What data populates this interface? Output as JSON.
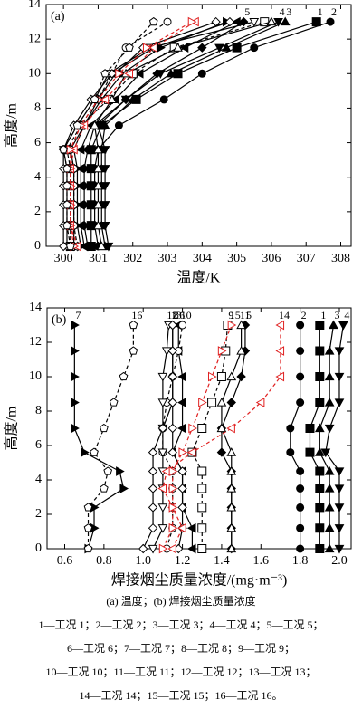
{
  "chart_data": [
    {
      "type": "line",
      "panel_label": "(a)",
      "xlabel": "温度/K",
      "ylabel": "高度/m",
      "heights": [
        0,
        1.2,
        2.4,
        3.5,
        4.5,
        5.6,
        7,
        8.5,
        10,
        11.5,
        13
      ],
      "xlim": [
        299.5,
        308.3
      ],
      "ylim": [
        0,
        14
      ],
      "xticks": [
        300,
        301,
        302,
        303,
        304,
        305,
        306,
        307,
        308
      ],
      "yticks": [
        0,
        2,
        4,
        6,
        8,
        10,
        12,
        14
      ],
      "series": [
        {
          "name": "1",
          "color": "#000000",
          "marker": "square",
          "filled": true,
          "dash": false,
          "values": [
            300.8,
            300.8,
            300.8,
            300.8,
            300.8,
            300.8,
            301.1,
            302.1,
            303.3,
            305.0,
            307.3
          ]
        },
        {
          "name": "2",
          "color": "#000000",
          "marker": "circle",
          "filled": true,
          "dash": false,
          "values": [
            301.0,
            300.9,
            300.9,
            300.9,
            300.9,
            301.0,
            301.6,
            302.9,
            304.0,
            305.5,
            307.7
          ]
        },
        {
          "name": "3",
          "color": "#000000",
          "marker": "tri-up",
          "filled": true,
          "dash": false,
          "values": [
            301.2,
            301.1,
            301.1,
            301.1,
            301.1,
            301.1,
            301.2,
            302.0,
            303.1,
            304.7,
            306.4
          ]
        },
        {
          "name": "4",
          "color": "#000000",
          "marker": "tri-down",
          "filled": true,
          "dash": false,
          "values": [
            301.3,
            301.2,
            301.2,
            301.2,
            301.2,
            301.2,
            301.0,
            301.8,
            302.8,
            304.5,
            306.2
          ]
        },
        {
          "name": "5",
          "color": "#000000",
          "marker": "diamond",
          "filled": true,
          "dash": false,
          "values": [
            300.7,
            300.6,
            300.6,
            300.6,
            300.6,
            300.7,
            300.9,
            301.8,
            302.7,
            304.0,
            305.2
          ]
        },
        {
          "color": "#000000",
          "marker": "tri-left",
          "filled": true,
          "dash": false,
          "values": [
            300.6,
            300.5,
            300.5,
            300.5,
            300.5,
            300.5,
            300.8,
            301.5,
            302.2,
            303.5,
            305.0
          ]
        },
        {
          "color": "#000000",
          "marker": "tri-right",
          "filled": true,
          "dash": false,
          "values": [
            300.5,
            300.4,
            300.4,
            300.4,
            300.4,
            300.3,
            300.6,
            301.1,
            301.7,
            302.8,
            304.7
          ]
        },
        {
          "color": "#000000",
          "marker": "diamond",
          "filled": false,
          "dash": false,
          "values": [
            300.3,
            300.3,
            300.3,
            300.3,
            300.3,
            300.2,
            300.6,
            301.0,
            301.5,
            302.3,
            304.4
          ]
        },
        {
          "color": "#000000",
          "marker": "square",
          "filled": false,
          "dash": true,
          "values": [
            300.2,
            300.2,
            300.2,
            300.2,
            300.2,
            300.1,
            300.5,
            301.3,
            302.0,
            303.2,
            305.8
          ]
        },
        {
          "color": "#000000",
          "marker": "circle",
          "filled": false,
          "dash": true,
          "values": [
            300.4,
            300.3,
            300.3,
            300.3,
            300.3,
            300.2,
            300.5,
            301.0,
            301.4,
            301.8,
            303.0
          ]
        },
        {
          "color": "#000000",
          "marker": "tri-up",
          "filled": false,
          "dash": false,
          "values": [
            301.1,
            301.0,
            301.0,
            301.0,
            301.0,
            301.0,
            300.9,
            301.4,
            301.8,
            303.3,
            306.0
          ]
        },
        {
          "color": "#000000",
          "marker": "tri-down",
          "filled": false,
          "dash": false,
          "values": [
            300.1,
            300.1,
            300.1,
            300.1,
            300.1,
            300.0,
            300.4,
            300.9,
            301.3,
            302.5,
            305.5
          ]
        },
        {
          "color": "#000000",
          "marker": "diamond",
          "filled": false,
          "dash": false,
          "values": [
            300.0,
            300.0,
            300.0,
            300.0,
            300.0,
            300.0,
            300.3,
            300.8,
            301.4,
            302.6,
            304.8
          ]
        },
        {
          "color": "#e02020",
          "marker": "tri-left",
          "filled": false,
          "dash": true,
          "values": [
            300.4,
            300.2,
            300.2,
            300.2,
            300.2,
            300.3,
            300.6,
            301.2,
            301.9,
            302.6,
            303.8
          ]
        },
        {
          "color": "#e02020",
          "marker": "tri-right",
          "filled": false,
          "dash": true,
          "values": [
            300.3,
            300.2,
            300.2,
            300.2,
            300.2,
            300.2,
            300.5,
            301.0,
            301.6,
            302.4,
            303.7
          ]
        },
        {
          "color": "#000000",
          "marker": "pentagon",
          "filled": false,
          "dash": true,
          "values": [
            300.2,
            300.1,
            300.1,
            300.1,
            300.1,
            300.0,
            300.4,
            300.9,
            301.2,
            301.9,
            302.6
          ]
        }
      ]
    },
    {
      "type": "line",
      "panel_label": "(b)",
      "xlabel": "焊接烟尘质量浓度/(mg·m⁻³)",
      "ylabel": "高度/m",
      "heights": [
        0,
        1.2,
        2.4,
        3.5,
        4.5,
        5.6,
        7,
        8.5,
        10,
        11.5,
        13
      ],
      "xlim": [
        0.51,
        2.06
      ],
      "ylim": [
        0,
        14
      ],
      "xticks": [
        0.6,
        0.8,
        {
          "value": 1,
          "label": "1.0"
        },
        1.2,
        1.4,
        1.6,
        1.8,
        {
          "value": 2,
          "label": "2.0"
        }
      ],
      "yticks": [
        0,
        2,
        4,
        6,
        8,
        10,
        12,
        14
      ],
      "series": [
        {
          "name": "1",
          "color": "#000000",
          "marker": "square",
          "filled": true,
          "dash": false,
          "values": [
            1.9,
            1.9,
            1.9,
            1.9,
            1.9,
            1.85,
            1.85,
            1.9,
            1.9,
            1.9,
            1.9
          ]
        },
        {
          "name": "2",
          "color": "#000000",
          "marker": "circle",
          "filled": true,
          "dash": false,
          "values": [
            1.8,
            1.8,
            1.8,
            1.8,
            1.8,
            1.75,
            1.75,
            1.8,
            1.8,
            1.8,
            1.8
          ]
        },
        {
          "name": "3",
          "color": "#000000",
          "marker": "tri-up",
          "filled": true,
          "dash": false,
          "values": [
            1.95,
            1.95,
            1.95,
            1.95,
            1.95,
            1.9,
            1.9,
            1.95,
            1.95,
            1.95,
            1.97
          ]
        },
        {
          "name": "4",
          "color": "#000000",
          "marker": "tri-down",
          "filled": true,
          "dash": false,
          "values": [
            2.0,
            2.0,
            2.0,
            2.0,
            2.0,
            1.93,
            1.95,
            2.0,
            2.0,
            2.0,
            2.02
          ]
        },
        {
          "name": "5",
          "color": "#000000",
          "marker": "diamond",
          "filled": true,
          "dash": false,
          "values": [
            1.45,
            1.45,
            1.45,
            1.45,
            1.45,
            1.4,
            1.4,
            1.45,
            1.5,
            1.52,
            1.52
          ]
        },
        {
          "name": "6",
          "color": "#000000",
          "marker": "tri-left",
          "filled": true,
          "dash": false,
          "values": [
            1.25,
            1.25,
            1.2,
            1.2,
            1.2,
            1.15,
            1.2,
            1.2,
            1.2,
            1.18,
            1.18
          ]
        },
        {
          "name": "7",
          "color": "#000000",
          "marker": "tri-right",
          "filled": true,
          "dash": false,
          "values": [
            0.72,
            0.75,
            0.75,
            0.9,
            0.88,
            0.7,
            0.65,
            0.65,
            0.65,
            0.65,
            0.65
          ]
        },
        {
          "name": "8",
          "color": "#000000",
          "marker": "diamond",
          "filled": false,
          "dash": false,
          "values": [
            1.18,
            1.2,
            1.2,
            1.2,
            1.2,
            1.15,
            1.15,
            1.15,
            1.15,
            1.15,
            1.15
          ]
        },
        {
          "name": "9",
          "color": "#000000",
          "marker": "square",
          "filled": false,
          "dash": true,
          "values": [
            1.3,
            1.3,
            1.3,
            1.3,
            1.3,
            1.25,
            1.3,
            1.35,
            1.4,
            1.42,
            1.43
          ]
        },
        {
          "name": "10",
          "color": "#000000",
          "marker": "circle",
          "filled": false,
          "dash": true,
          "values": [
            1.12,
            1.15,
            1.15,
            1.15,
            1.15,
            1.1,
            1.1,
            1.12,
            1.15,
            1.18,
            1.2
          ]
        },
        {
          "name": "11",
          "color": "#000000",
          "marker": "tri-up",
          "filled": false,
          "dash": false,
          "values": [
            1.45,
            1.45,
            1.45,
            1.45,
            1.45,
            1.45,
            1.4,
            1.4,
            1.45,
            1.5,
            1.5
          ]
        },
        {
          "name": "12",
          "color": "#000000",
          "marker": "tri-down",
          "filled": false,
          "dash": false,
          "values": [
            1.05,
            1.1,
            1.1,
            1.1,
            1.1,
            1.1,
            1.1,
            1.1,
            1.1,
            1.12,
            1.13
          ]
        },
        {
          "name": "13",
          "color": "#000000",
          "marker": "diamond",
          "filled": false,
          "dash": false,
          "values": [
            1.0,
            1.05,
            1.05,
            1.05,
            1.05,
            1.05,
            1.1,
            1.15,
            1.15,
            1.15,
            1.15
          ]
        },
        {
          "name": "14",
          "color": "#e02020",
          "marker": "tri-left",
          "filled": false,
          "dash": true,
          "values": [
            1.15,
            1.2,
            1.15,
            1.1,
            1.12,
            1.25,
            1.45,
            1.6,
            1.7,
            1.7,
            1.7
          ]
        },
        {
          "name": "15",
          "color": "#e02020",
          "marker": "tri-right",
          "filled": false,
          "dash": true,
          "values": [
            1.1,
            1.15,
            1.15,
            1.15,
            1.15,
            1.2,
            1.25,
            1.3,
            1.35,
            1.4,
            1.45
          ]
        },
        {
          "name": "16",
          "color": "#000000",
          "marker": "pentagon",
          "filled": false,
          "dash": true,
          "values": [
            0.72,
            0.72,
            0.72,
            0.8,
            0.82,
            0.75,
            0.8,
            0.85,
            0.9,
            0.95,
            0.95
          ]
        }
      ]
    }
  ],
  "caption": {
    "subtitle": "(a) 温度；(b) 焊接烟尘质量浓度",
    "lines": [
      "1—工况 1；2—工况 2；3—工况 3；4—工况 4；5—工况 5；",
      "6—工况 6；7—工况 7；8—工况 8；9—工况 9；",
      "10—工况 10；11—工况 11；12—工况 12；13—工况 13；",
      "14—工况 14；15—工况 15；16—工况 16。"
    ]
  }
}
